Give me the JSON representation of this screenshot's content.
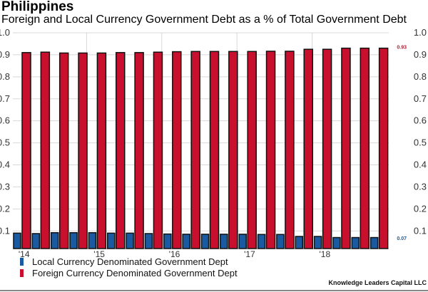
{
  "chart_data": {
    "type": "bar",
    "title": "Philippines",
    "subtitle": "Foreign and Local Currency Government Debt as a % of Total Government Debt",
    "categories": [
      "2014Q1",
      "2014Q2",
      "2014Q3",
      "2014Q4",
      "2015Q1",
      "2015Q2",
      "2015Q3",
      "2015Q4",
      "2016Q1",
      "2016Q2",
      "2016Q3",
      "2016Q4",
      "2017Q1",
      "2017Q2",
      "2017Q3",
      "2017Q4",
      "2018Q1",
      "2018Q2",
      "2018Q3",
      "2018Q4"
    ],
    "x_tick_labels": [
      {
        "label": "'14",
        "index": 0
      },
      {
        "label": "'15",
        "index": 4
      },
      {
        "label": "'16",
        "index": 8
      },
      {
        "label": "'17",
        "index": 12
      },
      {
        "label": "'18",
        "index": 16
      }
    ],
    "series": [
      {
        "name": "Local Currency Denominated Government Dept",
        "color": "#1a5aa0",
        "values": [
          0.09,
          0.088,
          0.092,
          0.092,
          0.092,
          0.09,
          0.09,
          0.088,
          0.086,
          0.085,
          0.085,
          0.085,
          0.085,
          0.084,
          0.084,
          0.075,
          0.075,
          0.07,
          0.07,
          0.07
        ]
      },
      {
        "name": "Foreign Currency Denominated Government Dept",
        "color": "#c8102e",
        "values": [
          0.91,
          0.912,
          0.908,
          0.908,
          0.908,
          0.91,
          0.91,
          0.912,
          0.914,
          0.915,
          0.915,
          0.915,
          0.915,
          0.916,
          0.916,
          0.925,
          0.925,
          0.93,
          0.93,
          0.93
        ]
      }
    ],
    "ylim": [
      0.02,
      1.0
    ],
    "yticks": [
      "0.1",
      "0.2",
      "0.3",
      "0.4",
      "0.5",
      "0.6",
      "0.7",
      "0.8",
      "0.9",
      "1.0"
    ],
    "last_value_labels": {
      "foreign": "0.93",
      "local": "0.07"
    },
    "grid": true,
    "legend": "bottom-left"
  },
  "credit": "Knowledge Leaders Capital LLC"
}
